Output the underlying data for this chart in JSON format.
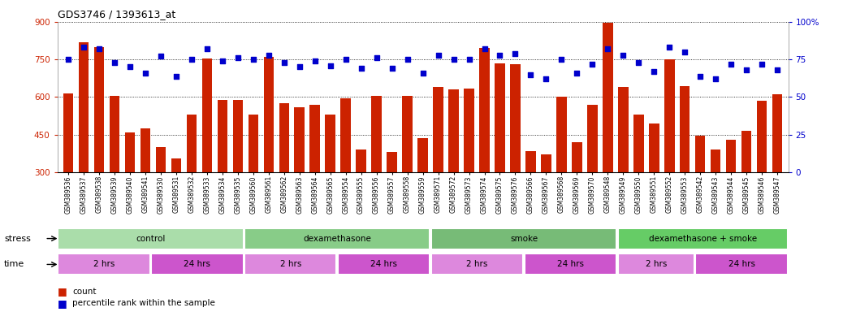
{
  "title": "GDS3746 / 1393613_at",
  "samples": [
    "GSM389536",
    "GSM389537",
    "GSM389538",
    "GSM389539",
    "GSM389540",
    "GSM389541",
    "GSM389530",
    "GSM389531",
    "GSM389532",
    "GSM389533",
    "GSM389534",
    "GSM389535",
    "GSM389560",
    "GSM389561",
    "GSM389562",
    "GSM389563",
    "GSM389564",
    "GSM389565",
    "GSM389554",
    "GSM389555",
    "GSM389556",
    "GSM389557",
    "GSM389558",
    "GSM389559",
    "GSM389571",
    "GSM389572",
    "GSM389573",
    "GSM389574",
    "GSM389575",
    "GSM389576",
    "GSM389566",
    "GSM389567",
    "GSM389568",
    "GSM389569",
    "GSM389570",
    "GSM389548",
    "GSM389549",
    "GSM389550",
    "GSM389551",
    "GSM389552",
    "GSM389553",
    "GSM389542",
    "GSM389543",
    "GSM389544",
    "GSM389545",
    "GSM389546",
    "GSM389547"
  ],
  "bar_values": [
    615,
    820,
    800,
    605,
    460,
    475,
    400,
    355,
    530,
    755,
    590,
    590,
    530,
    760,
    575,
    560,
    570,
    530,
    595,
    390,
    605,
    380,
    605,
    435,
    640,
    630,
    635,
    795,
    735,
    730,
    385,
    370,
    600,
    420,
    570,
    895,
    640,
    530,
    495,
    750,
    645,
    445,
    390,
    430,
    465,
    585,
    610
  ],
  "dot_values": [
    75,
    83,
    82,
    73,
    70,
    66,
    77,
    64,
    75,
    82,
    74,
    76,
    75,
    78,
    73,
    70,
    74,
    71,
    75,
    69,
    76,
    69,
    75,
    66,
    78,
    75,
    75,
    82,
    78,
    79,
    65,
    62,
    75,
    66,
    72,
    82,
    78,
    73,
    67,
    83,
    80,
    64,
    62,
    72,
    68,
    72,
    68
  ],
  "ylim_left": [
    300,
    900
  ],
  "ylim_right": [
    0,
    100
  ],
  "yticks_left": [
    300,
    450,
    600,
    750,
    900
  ],
  "yticks_right": [
    0,
    25,
    50,
    75,
    100
  ],
  "bar_color": "#CC2200",
  "dot_color": "#0000CC",
  "groups": [
    {
      "label": "control",
      "start": 0,
      "end": 12,
      "color": "#AADDAA"
    },
    {
      "label": "dexamethasone",
      "start": 12,
      "end": 24,
      "color": "#88CC88"
    },
    {
      "label": "smoke",
      "start": 24,
      "end": 36,
      "color": "#77BB77"
    },
    {
      "label": "dexamethasone + smoke",
      "start": 36,
      "end": 47,
      "color": "#66CC66"
    }
  ],
  "time_groups": [
    {
      "label": "2 hrs",
      "start": 0,
      "end": 6
    },
    {
      "label": "24 hrs",
      "start": 6,
      "end": 12
    },
    {
      "label": "2 hrs",
      "start": 12,
      "end": 18
    },
    {
      "label": "24 hrs",
      "start": 18,
      "end": 24
    },
    {
      "label": "2 hrs",
      "start": 24,
      "end": 30
    },
    {
      "label": "24 hrs",
      "start": 30,
      "end": 36
    },
    {
      "label": "2 hrs",
      "start": 36,
      "end": 41
    },
    {
      "label": "24 hrs",
      "start": 41,
      "end": 47
    }
  ],
  "time_color_2hrs": "#DD88DD",
  "time_color_24hrs": "#CC55CC",
  "stress_label": "stress",
  "time_label": "time",
  "legend_count": "count",
  "legend_percentile": "percentile rank within the sample",
  "bg_color": "#F8F8F8"
}
